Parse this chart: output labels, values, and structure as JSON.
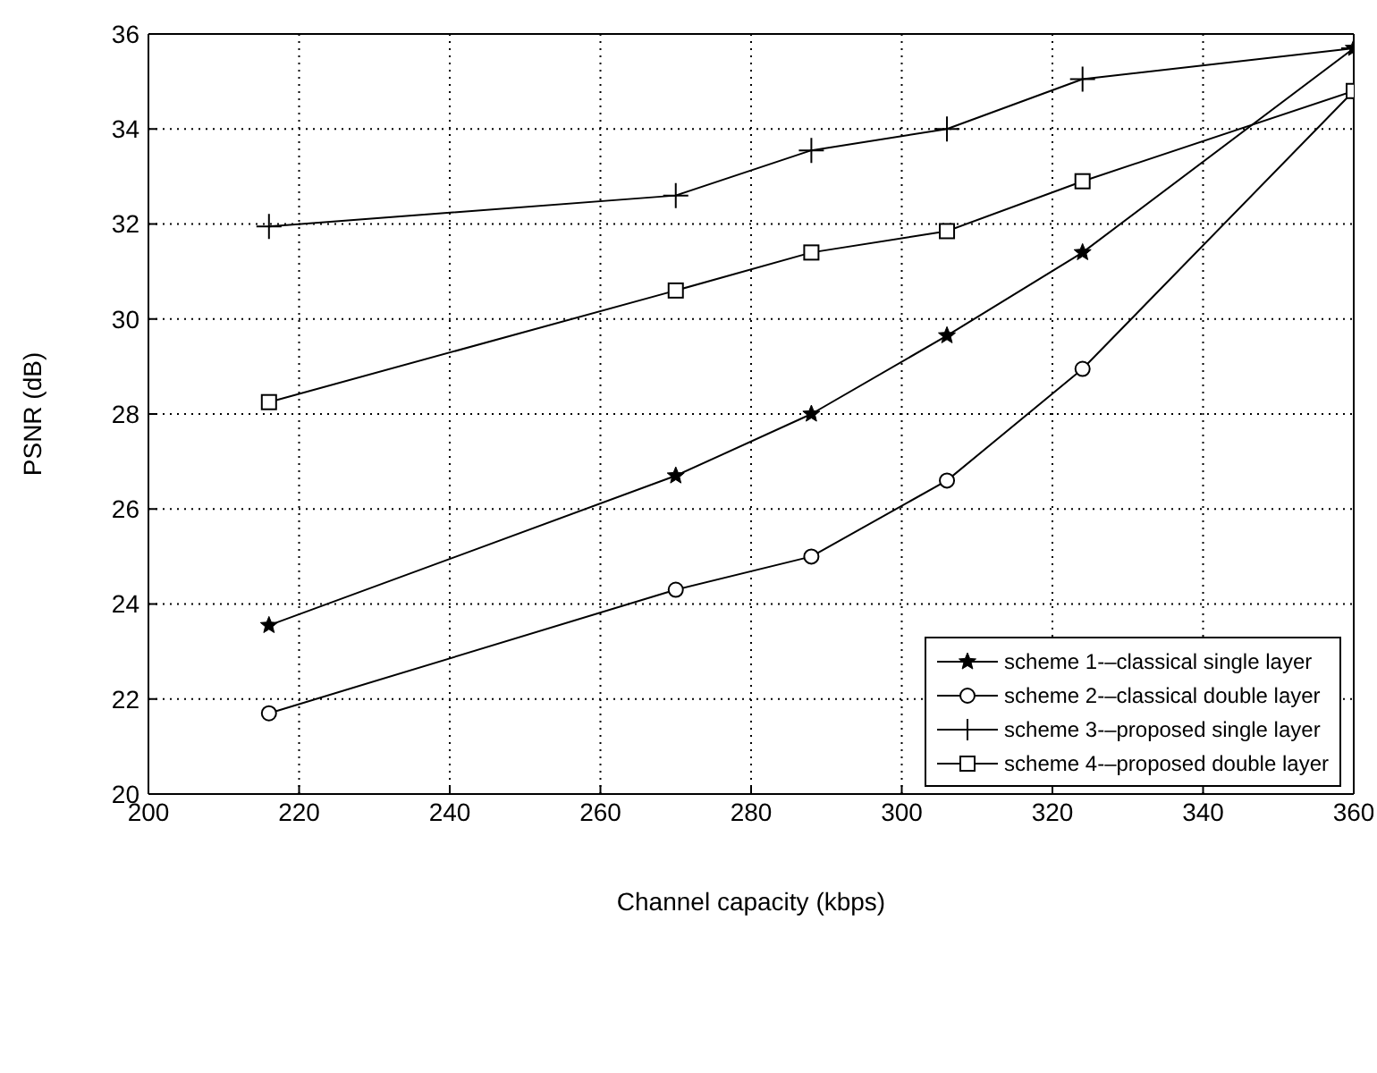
{
  "chart_data": {
    "type": "line",
    "xlabel": "Channel capacity (kbps)",
    "ylabel": "PSNR (dB)",
    "x": [
      216,
      270,
      288,
      306,
      324,
      360
    ],
    "series": [
      {
        "name": "scheme 1-–classical single layer",
        "color": "#000000",
        "marker": "star",
        "values": [
          23.55,
          26.7,
          28.0,
          29.65,
          31.4,
          35.7
        ]
      },
      {
        "name": "scheme 2-–classical double layer",
        "color": "#000000",
        "marker": "circle",
        "values": [
          21.7,
          24.3,
          25.0,
          26.6,
          28.95,
          34.8
        ]
      },
      {
        "name": "scheme 3-–proposed single layer",
        "color": "#000000",
        "marker": "cross",
        "values": [
          31.95,
          32.6,
          33.55,
          34.0,
          35.05,
          35.7
        ]
      },
      {
        "name": "scheme 4-–proposed double layer",
        "color": "#000000",
        "marker": "square",
        "values": [
          28.25,
          30.6,
          31.4,
          31.85,
          32.9,
          34.8
        ]
      }
    ],
    "xlim": [
      200,
      360
    ],
    "xticks": [
      200,
      220,
      240,
      260,
      280,
      300,
      320,
      340,
      360
    ],
    "ylim": [
      20,
      36
    ],
    "yticks": [
      20,
      22,
      24,
      26,
      28,
      30,
      32,
      34,
      36
    ],
    "grid": true,
    "legend": "bottom right",
    "line_style": "solid"
  }
}
